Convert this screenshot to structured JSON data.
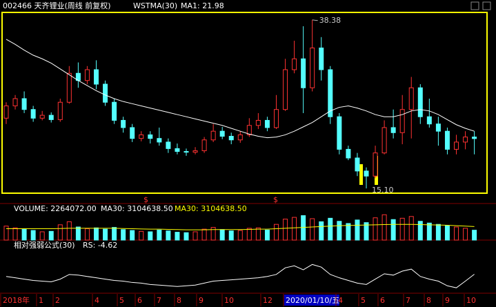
{
  "chart_data": {
    "type": "candlestick",
    "title": "002466 天齐锂业(周线 前复权)",
    "indicator": "WSTMA(30)",
    "ma_label": "MA1: 21.98",
    "annotations": [
      "38.38",
      "15.10"
    ],
    "signal_markers": [
      "$",
      "$"
    ],
    "up_color": "#ff3232",
    "down_color": "#54ffff",
    "ma_color": "#ffffff",
    "ylim": [
      14.63,
      39.22
    ],
    "ohlc": [
      [
        24.8,
        26.5,
        27.0,
        24.0
      ],
      [
        26.5,
        27.5,
        28.0,
        26.0
      ],
      [
        27.5,
        26.0,
        28.5,
        25.5
      ],
      [
        26.0,
        24.8,
        26.5,
        24.3
      ],
      [
        24.8,
        25.2,
        25.8,
        24.5
      ],
      [
        25.2,
        24.6,
        25.6,
        24.2
      ],
      [
        24.6,
        27.0,
        27.5,
        24.3
      ],
      [
        27.0,
        31.0,
        32.0,
        26.8
      ],
      [
        31.0,
        30.0,
        32.5,
        29.0
      ],
      [
        30.0,
        31.5,
        32.0,
        29.5
      ],
      [
        31.5,
        29.5,
        32.8,
        28.8
      ],
      [
        29.5,
        27.0,
        30.0,
        26.5
      ],
      [
        27.0,
        24.5,
        27.5,
        24.0
      ],
      [
        24.5,
        23.5,
        25.0,
        22.8
      ],
      [
        23.5,
        22.0,
        24.0,
        21.5
      ],
      [
        22.0,
        22.5,
        23.0,
        21.6
      ],
      [
        22.5,
        22.0,
        23.0,
        21.3
      ],
      [
        22.0,
        21.5,
        23.5,
        21.0
      ],
      [
        21.5,
        20.6,
        22.0,
        20.0
      ],
      [
        20.6,
        20.2,
        21.3,
        19.8
      ],
      [
        20.2,
        20.1,
        20.6,
        19.6
      ],
      [
        20.1,
        20.3,
        20.8,
        19.8
      ],
      [
        20.3,
        21.8,
        22.2,
        20.0
      ],
      [
        21.8,
        23.0,
        24.0,
        21.5
      ],
      [
        23.0,
        22.3,
        23.6,
        21.9
      ],
      [
        22.3,
        21.8,
        22.8,
        21.2
      ],
      [
        21.8,
        22.5,
        23.0,
        21.4
      ],
      [
        22.5,
        23.8,
        24.8,
        22.2
      ],
      [
        23.8,
        24.5,
        25.5,
        23.3
      ],
      [
        24.5,
        23.5,
        25.0,
        23.0
      ],
      [
        23.5,
        26.0,
        28.0,
        23.3
      ],
      [
        26.0,
        31.5,
        33.0,
        25.8
      ],
      [
        31.5,
        33.0,
        35.5,
        31.0
      ],
      [
        33.0,
        29.0,
        37.5,
        25.5
      ],
      [
        29.0,
        34.5,
        38.38,
        28.5
      ],
      [
        34.5,
        31.5,
        36.0,
        30.0
      ],
      [
        31.5,
        25.0,
        32.0,
        24.0
      ],
      [
        25.0,
        20.5,
        25.5,
        19.8
      ],
      [
        20.5,
        19.3,
        21.0,
        19.0
      ],
      [
        19.3,
        17.5,
        20.0,
        16.8
      ],
      [
        17.5,
        16.8,
        18.0,
        15.1
      ],
      [
        16.8,
        20.0,
        21.0,
        16.5
      ],
      [
        20.0,
        23.5,
        24.5,
        19.8
      ],
      [
        23.5,
        22.8,
        26.0,
        22.0
      ],
      [
        22.8,
        26.0,
        28.0,
        21.2
      ],
      [
        26.0,
        29.0,
        30.5,
        22.0
      ],
      [
        29.0,
        25.0,
        29.5,
        24.0
      ],
      [
        25.0,
        24.0,
        27.5,
        23.5
      ],
      [
        24.0,
        23.0,
        25.0,
        21.0
      ],
      [
        23.0,
        20.5,
        23.5,
        19.8
      ],
      [
        20.5,
        21.5,
        22.5,
        19.8
      ],
      [
        21.5,
        22.2,
        23.0,
        20.5
      ],
      [
        22.2,
        21.98,
        23.0,
        19.8
      ]
    ],
    "ma": [
      35.7,
      35.0,
      34.2,
      33.5,
      33.0,
      32.4,
      31.6,
      30.8,
      30.0,
      29.3,
      28.6,
      28.0,
      27.5,
      27.1,
      26.8,
      26.5,
      26.2,
      25.9,
      25.6,
      25.3,
      25.0,
      24.7,
      24.4,
      24.1,
      23.8,
      23.4,
      23.0,
      22.6,
      22.3,
      22.1,
      22.2,
      22.5,
      23.0,
      23.6,
      24.2,
      25.0,
      25.8,
      26.3,
      26.5,
      26.2,
      25.8,
      25.3,
      25.0,
      25.0,
      25.3,
      25.8,
      26.0,
      25.8,
      25.3,
      24.6,
      23.9,
      23.4,
      23.0
    ],
    "volume": {
      "title": "VOLUME: 2264072.00",
      "ma_label": "MA30: 3104638.50",
      "ma_label2": "MA30: 3104638.50",
      "ylim": [
        0,
        6000000
      ],
      "values": [
        3200000,
        2800000,
        2500000,
        2200000,
        1900000,
        2000000,
        3500000,
        4200000,
        3000000,
        2600000,
        2800000,
        2500000,
        2900000,
        2400000,
        2200000,
        2000000,
        1900000,
        2300000,
        2100000,
        1800000,
        1700000,
        1900000,
        2500000,
        2900000,
        2400000,
        2100000,
        2200000,
        2700000,
        2800000,
        2300000,
        3600000,
        4800000,
        5200000,
        5600000,
        4900000,
        4200000,
        5000000,
        4300000,
        3800000,
        4600000,
        4000000,
        5100000,
        5800000,
        4700000,
        5000000,
        5400000,
        4300000,
        3900000,
        3600000,
        3300000,
        3000000,
        2700000,
        2264072
      ],
      "ma": [
        2600000,
        2600000,
        2600000,
        2600000,
        2600000,
        2600000,
        2650000,
        2700000,
        2700000,
        2700000,
        2700000,
        2700000,
        2700000,
        2650000,
        2600000,
        2550000,
        2500000,
        2500000,
        2450000,
        2400000,
        2350000,
        2350000,
        2350000,
        2400000,
        2400000,
        2400000,
        2400000,
        2450000,
        2500000,
        2500000,
        2600000,
        2700000,
        2800000,
        2900000,
        3000000,
        3100000,
        3200000,
        3300000,
        3350000,
        3400000,
        3450000,
        3500000,
        3550000,
        3600000,
        3600000,
        3600000,
        3550000,
        3500000,
        3450000,
        3400000,
        3300000,
        3200000,
        3104638.5
      ]
    },
    "rs": {
      "title": "相对强弱公式(30)",
      "value_label": "RS: -4.62",
      "ylim": [
        -30,
        30
      ],
      "values": [
        -8,
        -10,
        -12,
        -14,
        -15,
        -16,
        -12,
        -5,
        -6,
        -8,
        -10,
        -12,
        -14,
        -15,
        -17,
        -18,
        -20,
        -21,
        -22,
        -23,
        -22,
        -21,
        -18,
        -15,
        -14,
        -13,
        -12,
        -11,
        -10,
        -8,
        -5,
        5,
        8,
        2,
        10,
        6,
        -5,
        -10,
        -14,
        -18,
        -20,
        -12,
        -4,
        -6,
        0,
        3,
        -8,
        -12,
        -15,
        -22,
        -25,
        -15,
        -4.62
      ]
    },
    "x_labels": [
      "2018年",
      "1",
      "2",
      "4",
      "5",
      "6",
      "7",
      "8",
      "9",
      "10",
      "12",
      "2020/01/10/五",
      "4",
      "5",
      "6",
      "7",
      "8",
      "9",
      "10"
    ]
  }
}
